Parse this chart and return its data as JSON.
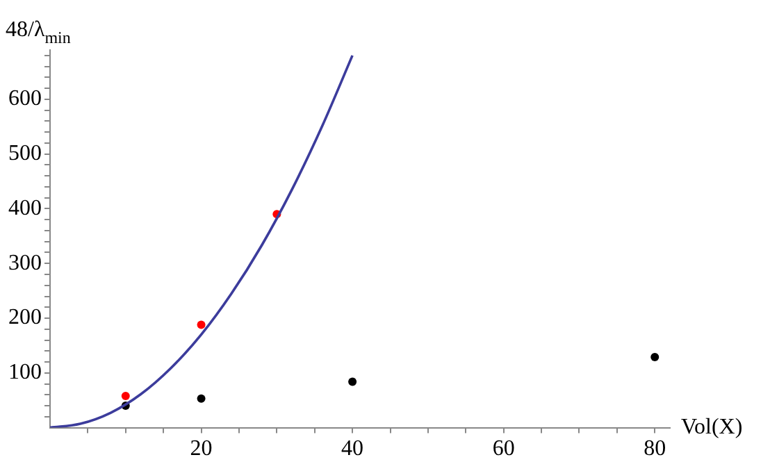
{
  "chart_data": {
    "type": "scatter",
    "xlabel": "Vol(X)",
    "ylabel": "48/λ$_{min}$",
    "xlim": [
      0,
      82
    ],
    "ylim": [
      0,
      690
    ],
    "xticks": [
      {
        "value": 5,
        "label": null
      },
      {
        "value": 10,
        "label": null
      },
      {
        "value": 15,
        "label": null
      },
      20,
      {
        "value": 25,
        "label": null
      },
      {
        "value": 30,
        "label": null
      },
      {
        "value": 35,
        "label": null
      },
      40,
      {
        "value": 45,
        "label": null
      },
      {
        "value": 50,
        "label": null
      },
      {
        "value": 55,
        "label": null
      },
      60,
      {
        "value": 65,
        "label": null
      },
      {
        "value": 70,
        "label": null
      },
      {
        "value": 75,
        "label": null
      },
      80
    ],
    "yticks": [
      {
        "value": 20,
        "label": null
      },
      {
        "value": 40,
        "label": null
      },
      {
        "value": 60,
        "label": null
      },
      {
        "value": 80,
        "label": null
      },
      100,
      {
        "value": 120,
        "label": null
      },
      {
        "value": 140,
        "label": null
      },
      {
        "value": 160,
        "label": null
      },
      {
        "value": 180,
        "label": null
      },
      200,
      {
        "value": 220,
        "label": null
      },
      {
        "value": 240,
        "label": null
      },
      {
        "value": 260,
        "label": null
      },
      {
        "value": 280,
        "label": null
      },
      300,
      {
        "value": 320,
        "label": null
      },
      {
        "value": 340,
        "label": null
      },
      {
        "value": 360,
        "label": null
      },
      {
        "value": 380,
        "label": null
      },
      400,
      {
        "value": 420,
        "label": null
      },
      {
        "value": 440,
        "label": null
      },
      {
        "value": 460,
        "label": null
      },
      {
        "value": 480,
        "label": null
      },
      500,
      {
        "value": 520,
        "label": null
      },
      {
        "value": 540,
        "label": null
      },
      {
        "value": 560,
        "label": null
      },
      {
        "value": 580,
        "label": null
      },
      600,
      {
        "value": 620,
        "label": null
      },
      {
        "value": 640,
        "label": null
      },
      {
        "value": 660,
        "label": null
      },
      {
        "value": 680,
        "label": null
      }
    ],
    "grid": false,
    "legend": false,
    "marker": "circle",
    "series": [
      {
        "type": "line",
        "color": "#3c3c9c",
        "marker": "none",
        "x": [
          0,
          4,
          8,
          12,
          16,
          20,
          24,
          28,
          32,
          36,
          40
        ],
        "values": [
          0,
          7,
          27,
          61,
          109,
          170,
          245,
          333,
          435,
          551,
          680
        ]
      },
      {
        "color": "#ff0000",
        "x": [
          10,
          20,
          30
        ],
        "values": [
          58,
          188,
          390
        ]
      },
      {
        "color": "#000000",
        "x": [
          10,
          20,
          40,
          80
        ],
        "values": [
          40,
          53,
          84,
          129
        ]
      }
    ]
  }
}
